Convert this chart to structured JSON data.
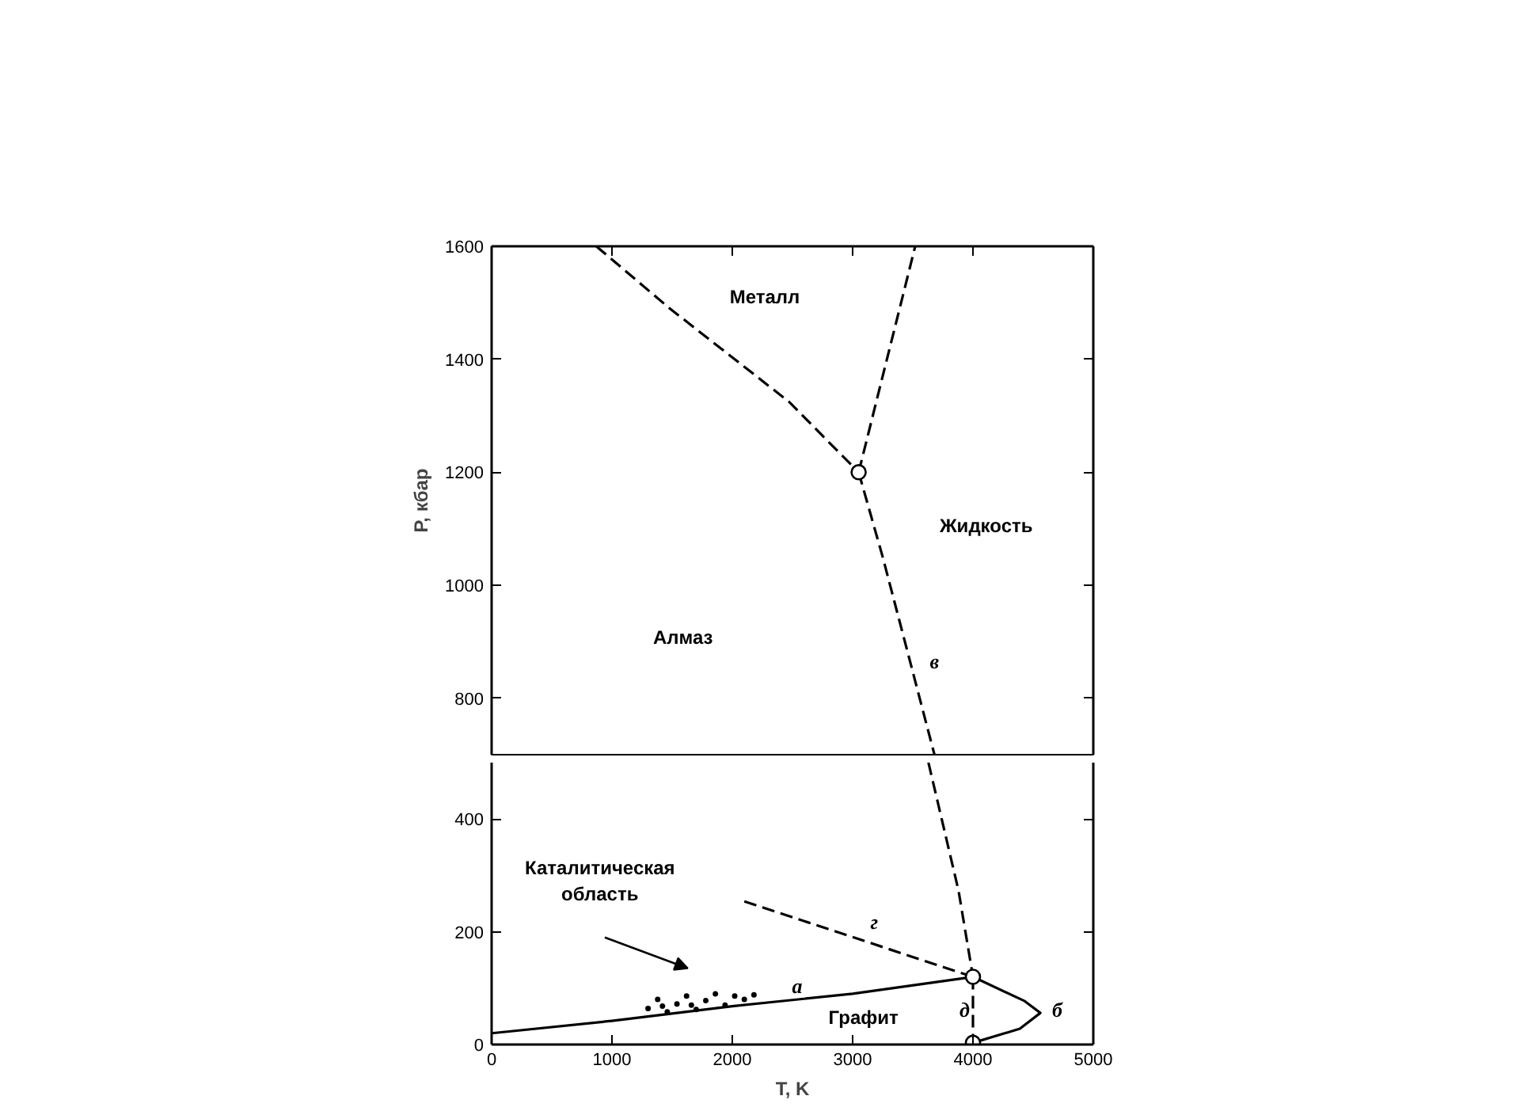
{
  "chart_data": [
    {
      "type": "line",
      "ylabel": "P, кбар",
      "xlim": [
        0,
        5000
      ],
      "ylim": [
        700,
        1600
      ],
      "xticks": [
        1000,
        2000,
        3000,
        4000
      ],
      "yticks": [
        800,
        1000,
        1200,
        1400,
        1600
      ],
      "tick_labels": "y",
      "grid": false,
      "series": [
        {
          "x": [
            870,
            1480,
            2470,
            3050
          ],
          "values": [
            1600,
            1490,
            1325,
            1200
          ],
          "color": "#000000",
          "line_style": "dashed"
        },
        {
          "x": [
            3050,
            3520
          ],
          "values": [
            1200,
            1600
          ],
          "color": "#000000",
          "line_style": "dashed"
        },
        {
          "x": [
            3050,
            3250,
            3680
          ],
          "values": [
            1200,
            1050,
            700
          ],
          "color": "#000000",
          "line_style": "dashed"
        },
        {
          "type": "scatter",
          "x": [
            3050
          ],
          "values": [
            1200
          ],
          "color": "#000000",
          "marker": "circle"
        }
      ],
      "annotations": [
        "Металл",
        "Жидкость",
        "Алмаз",
        "в"
      ]
    },
    {
      "type": "line",
      "xlabel": "T, K",
      "xlim": [
        0,
        5000
      ],
      "ylim": [
        0,
        500
      ],
      "xticks": [
        0,
        1000,
        2000,
        3000,
        4000,
        5000
      ],
      "yticks": [
        0,
        200,
        400
      ],
      "grid": false,
      "series": [
        {
          "x": [
            3630,
            3880,
            4000
          ],
          "values": [
            500,
            273,
            120
          ],
          "color": "#000000",
          "line_style": "dashed"
        },
        {
          "x": [
            0,
            1000,
            2000,
            3000,
            4000
          ],
          "values": [
            20,
            42,
            68,
            90,
            120
          ],
          "color": "#000000",
          "line_style": "solid"
        },
        {
          "x": [
            2100,
            4000
          ],
          "values": [
            254,
            120
          ],
          "color": "#000000",
          "line_style": "dashed"
        },
        {
          "x": [
            4000,
            4430,
            4560,
            4390,
            4000
          ],
          "values": [
            120,
            77,
            56,
            28,
            3
          ],
          "color": "#000000",
          "line_style": "solid"
        },
        {
          "x": [
            4000,
            4000
          ],
          "values": [
            120,
            3
          ],
          "color": "#000000",
          "line_style": "dashed"
        },
        {
          "type": "scatter",
          "x": [
            1300,
            1380,
            1420,
            1460,
            1540,
            1620,
            1660,
            1700,
            1780,
            1860,
            1940,
            2020,
            2100,
            2180
          ],
          "values": [
            64,
            80,
            68,
            58,
            72,
            86,
            70,
            62,
            78,
            90,
            70,
            86,
            80,
            88
          ],
          "color": "#000000",
          "marker": "dot"
        },
        {
          "type": "scatter",
          "x": [
            4000,
            4000
          ],
          "values": [
            120,
            3
          ],
          "color": "#000000",
          "marker": "circle"
        }
      ],
      "annotations": [
        "Каталитическая\nобласть",
        "г",
        "а",
        "б",
        "Графит",
        "д"
      ]
    }
  ]
}
